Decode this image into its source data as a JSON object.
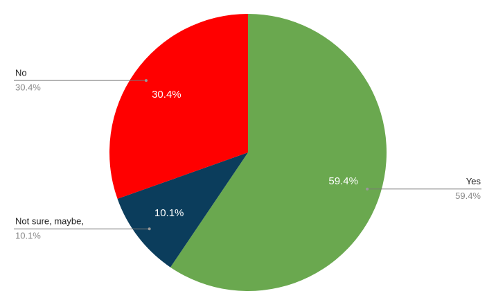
{
  "chart_data": {
    "type": "pie",
    "categories": [
      "Yes",
      "Not sure, maybe,",
      "No"
    ],
    "values": [
      59.4,
      10.1,
      30.4
    ],
    "value_labels": [
      "59.4%",
      "10.1%",
      "30.4%"
    ],
    "colors": [
      "#6aa84f",
      "#0b3d5c",
      "#ff0000"
    ]
  }
}
